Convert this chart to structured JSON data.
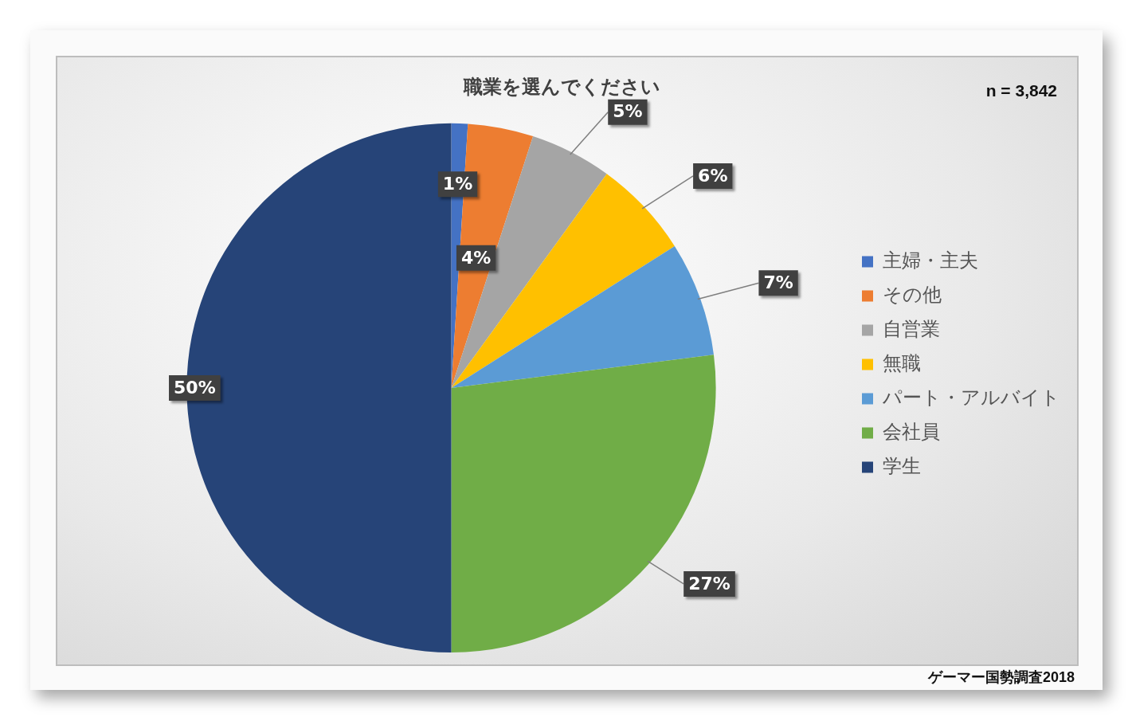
{
  "chart_data": {
    "type": "pie",
    "title": "職業を選んでください",
    "categories": [
      "主婦・主夫",
      "その他",
      "自営業",
      "無職",
      "パート・アルバイト",
      "会社員",
      "学生"
    ],
    "values": [
      1,
      4,
      5,
      6,
      7,
      27,
      50
    ],
    "colors": [
      "#4472c4",
      "#ed7d31",
      "#a5a5a5",
      "#ffc000",
      "#5b9bd5",
      "#70ad47",
      "#264478"
    ],
    "value_labels": [
      "1%",
      "4%",
      "5%",
      "6%",
      "7%",
      "27%",
      "50%"
    ],
    "legend": "right",
    "annotations": [
      "n = 3,842",
      "ゲーマー国勢調査2018"
    ]
  }
}
